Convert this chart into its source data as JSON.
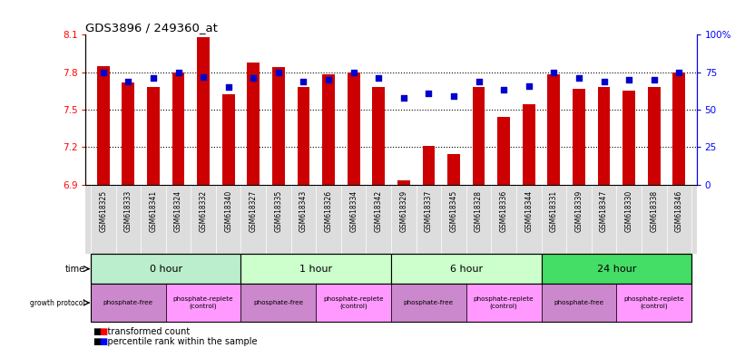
{
  "title": "GDS3896 / 249360_at",
  "samples": [
    "GSM618325",
    "GSM618333",
    "GSM618341",
    "GSM618324",
    "GSM618332",
    "GSM618340",
    "GSM618327",
    "GSM618335",
    "GSM618343",
    "GSM618326",
    "GSM618334",
    "GSM618342",
    "GSM618329",
    "GSM618337",
    "GSM618345",
    "GSM618328",
    "GSM618336",
    "GSM618344",
    "GSM618331",
    "GSM618339",
    "GSM618347",
    "GSM618330",
    "GSM618338",
    "GSM618346"
  ],
  "transformed_count": [
    7.85,
    7.72,
    7.68,
    7.8,
    8.08,
    7.62,
    7.88,
    7.84,
    7.68,
    7.78,
    7.8,
    7.68,
    6.93,
    7.21,
    7.14,
    7.68,
    7.44,
    7.54,
    7.78,
    7.67,
    7.68,
    7.65,
    7.68,
    7.8
  ],
  "percentile_rank": [
    75,
    69,
    71,
    75,
    72,
    65,
    71,
    75,
    69,
    70,
    75,
    71,
    58,
    61,
    59,
    69,
    63,
    66,
    75,
    71,
    69,
    70,
    70,
    75
  ],
  "ylim": [
    6.9,
    8.1
  ],
  "yticks": [
    6.9,
    7.2,
    7.5,
    7.8,
    8.1
  ],
  "ytick_labels": [
    "6.9",
    "7.2",
    "7.5",
    "7.8",
    "8.1"
  ],
  "y2lim": [
    0,
    100
  ],
  "y2ticks": [
    0,
    25,
    50,
    75,
    100
  ],
  "y2tick_labels": [
    "0",
    "25",
    "50",
    "75",
    "100%"
  ],
  "bar_color": "#cc0000",
  "dot_color": "#0000cc",
  "bar_width": 0.5,
  "time_groups": [
    {
      "label": "0 hour",
      "start": 0,
      "end": 6,
      "color": "#bbeecc"
    },
    {
      "label": "1 hour",
      "start": 6,
      "end": 12,
      "color": "#ccffcc"
    },
    {
      "label": "6 hour",
      "start": 12,
      "end": 18,
      "color": "#ccffcc"
    },
    {
      "label": "24 hour",
      "start": 18,
      "end": 24,
      "color": "#44dd66"
    }
  ],
  "proto_groups": [
    {
      "label": "phosphate-free",
      "start": 0,
      "end": 3,
      "color": "#cc88cc"
    },
    {
      "label": "phosphate-replete\n(control)",
      "start": 3,
      "end": 6,
      "color": "#ff99ff"
    },
    {
      "label": "phosphate-free",
      "start": 6,
      "end": 9,
      "color": "#cc88cc"
    },
    {
      "label": "phosphate-replete\n(control)",
      "start": 9,
      "end": 12,
      "color": "#ff99ff"
    },
    {
      "label": "phosphate-free",
      "start": 12,
      "end": 15,
      "color": "#cc88cc"
    },
    {
      "label": "phosphate-replete\n(control)",
      "start": 15,
      "end": 18,
      "color": "#ff99ff"
    },
    {
      "label": "phosphate-free",
      "start": 18,
      "end": 21,
      "color": "#cc88cc"
    },
    {
      "label": "phosphate-replete\n(control)",
      "start": 21,
      "end": 24,
      "color": "#ff99ff"
    }
  ]
}
